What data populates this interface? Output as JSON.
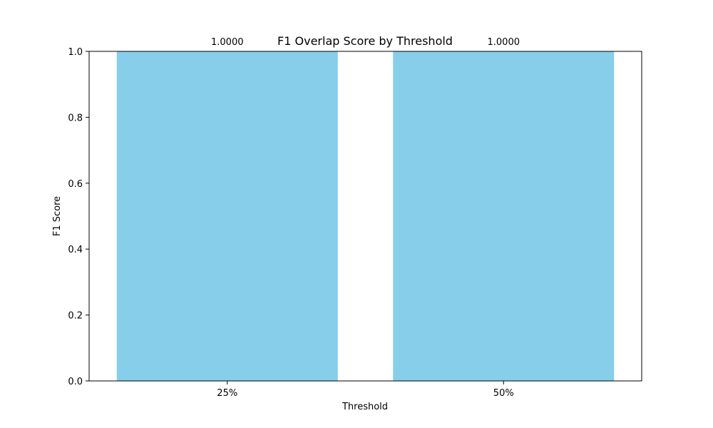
{
  "chart_data": {
    "type": "bar",
    "title": "F1 Overlap Score by Threshold",
    "xlabel": "Threshold",
    "ylabel": "F1 Score",
    "categories": [
      "25%",
      "50%"
    ],
    "values": [
      1.0,
      1.0
    ],
    "value_labels": [
      "1.0000",
      "1.0000"
    ],
    "ylim": [
      0,
      1.0
    ],
    "yticks": [
      0.0,
      0.2,
      0.4,
      0.6,
      0.8,
      1.0
    ],
    "ytick_labels": [
      "0.0",
      "0.2",
      "0.4",
      "0.6",
      "0.8",
      "1.0"
    ],
    "bar_color": "#87ceeb",
    "grid": false
  }
}
